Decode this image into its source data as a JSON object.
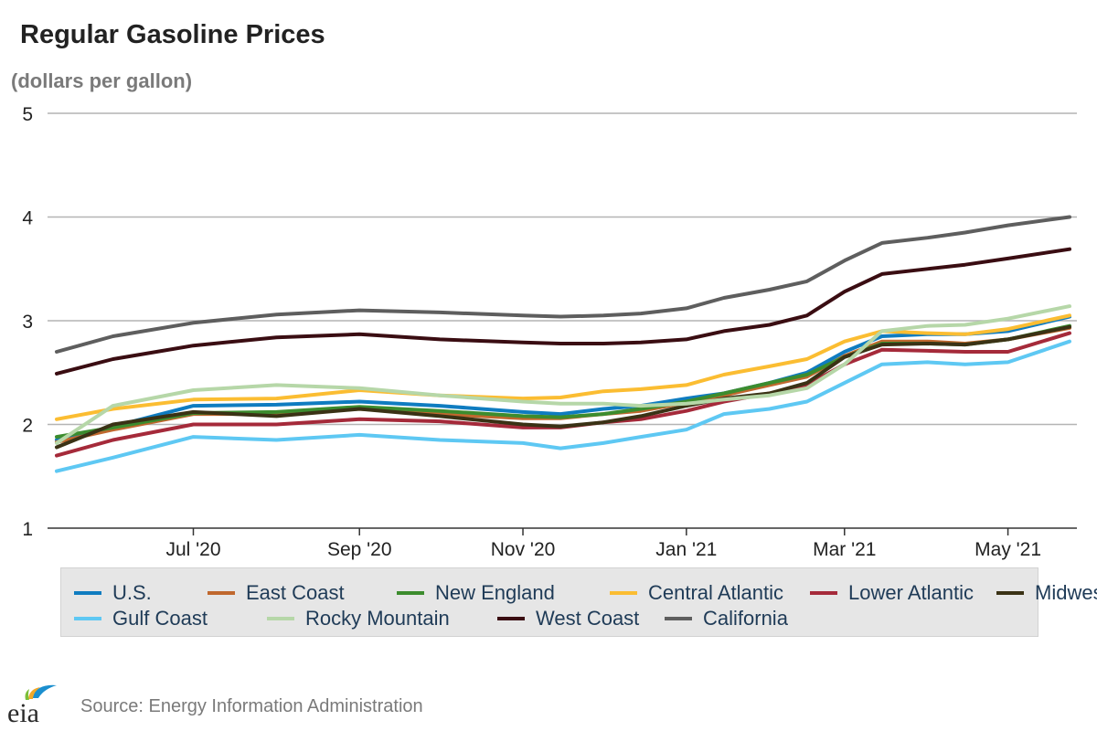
{
  "chart_data": {
    "type": "line",
    "title": "Regular Gasoline Prices",
    "subtitle": "(dollars per gallon)",
    "ylim": [
      1,
      5
    ],
    "y_ticks": [
      1,
      2,
      3,
      4,
      5
    ],
    "x_range": [
      "2020-05-11",
      "2021-05-24"
    ],
    "x_ticks": [
      {
        "date": "2020-07-01",
        "label": "Jul '20"
      },
      {
        "date": "2020-09-01",
        "label": "Sep '20"
      },
      {
        "date": "2020-11-01",
        "label": "Nov '20"
      },
      {
        "date": "2021-01-01",
        "label": "Jan '21"
      },
      {
        "date": "2021-03-01",
        "label": "Mar '21"
      },
      {
        "date": "2021-05-01",
        "label": "May '21"
      }
    ],
    "grid": "horizontal",
    "legend_position": "bottom",
    "series": [
      {
        "name": "U.S.",
        "color": "#0f7cc0",
        "points": [
          [
            "2020-05-11",
            1.85
          ],
          [
            "2020-06-01",
            1.98
          ],
          [
            "2020-07-01",
            2.18
          ],
          [
            "2020-08-01",
            2.19
          ],
          [
            "2020-09-01",
            2.22
          ],
          [
            "2020-10-01",
            2.18
          ],
          [
            "2020-11-01",
            2.12
          ],
          [
            "2020-11-15",
            2.1
          ],
          [
            "2020-12-01",
            2.15
          ],
          [
            "2020-12-15",
            2.18
          ],
          [
            "2021-01-01",
            2.25
          ],
          [
            "2021-01-15",
            2.3
          ],
          [
            "2021-02-01",
            2.4
          ],
          [
            "2021-02-15",
            2.5
          ],
          [
            "2021-03-01",
            2.7
          ],
          [
            "2021-03-15",
            2.85
          ],
          [
            "2021-04-01",
            2.87
          ],
          [
            "2021-04-15",
            2.87
          ],
          [
            "2021-05-01",
            2.9
          ],
          [
            "2021-05-24",
            3.04
          ]
        ]
      },
      {
        "name": "East Coast",
        "color": "#c0682e",
        "points": [
          [
            "2020-05-11",
            1.83
          ],
          [
            "2020-06-01",
            1.95
          ],
          [
            "2020-07-01",
            2.1
          ],
          [
            "2020-08-01",
            2.1
          ],
          [
            "2020-09-01",
            2.15
          ],
          [
            "2020-10-01",
            2.1
          ],
          [
            "2020-11-01",
            2.06
          ],
          [
            "2020-11-15",
            2.06
          ],
          [
            "2020-12-01",
            2.1
          ],
          [
            "2020-12-15",
            2.13
          ],
          [
            "2021-01-01",
            2.21
          ],
          [
            "2021-01-15",
            2.28
          ],
          [
            "2021-02-01",
            2.38
          ],
          [
            "2021-02-15",
            2.46
          ],
          [
            "2021-03-01",
            2.66
          ],
          [
            "2021-03-15",
            2.8
          ],
          [
            "2021-04-01",
            2.8
          ],
          [
            "2021-04-15",
            2.78
          ],
          [
            "2021-05-01",
            2.82
          ],
          [
            "2021-05-24",
            2.93
          ]
        ]
      },
      {
        "name": "New England",
        "color": "#3c8c2e",
        "points": [
          [
            "2020-05-11",
            1.88
          ],
          [
            "2020-06-01",
            1.97
          ],
          [
            "2020-07-01",
            2.11
          ],
          [
            "2020-08-01",
            2.12
          ],
          [
            "2020-09-01",
            2.17
          ],
          [
            "2020-10-01",
            2.13
          ],
          [
            "2020-11-01",
            2.08
          ],
          [
            "2020-11-15",
            2.07
          ],
          [
            "2020-12-01",
            2.1
          ],
          [
            "2020-12-15",
            2.15
          ],
          [
            "2021-01-01",
            2.22
          ],
          [
            "2021-01-15",
            2.3
          ],
          [
            "2021-02-01",
            2.4
          ],
          [
            "2021-02-15",
            2.48
          ],
          [
            "2021-03-01",
            2.65
          ],
          [
            "2021-03-15",
            2.78
          ],
          [
            "2021-04-01",
            2.78
          ],
          [
            "2021-04-15",
            2.77
          ],
          [
            "2021-05-01",
            2.82
          ],
          [
            "2021-05-24",
            2.95
          ]
        ]
      },
      {
        "name": "Central Atlantic",
        "color": "#fbbd32",
        "points": [
          [
            "2020-05-11",
            2.05
          ],
          [
            "2020-06-01",
            2.15
          ],
          [
            "2020-07-01",
            2.24
          ],
          [
            "2020-08-01",
            2.25
          ],
          [
            "2020-09-01",
            2.33
          ],
          [
            "2020-10-01",
            2.28
          ],
          [
            "2020-11-01",
            2.25
          ],
          [
            "2020-11-15",
            2.26
          ],
          [
            "2020-12-01",
            2.32
          ],
          [
            "2020-12-15",
            2.34
          ],
          [
            "2021-01-01",
            2.38
          ],
          [
            "2021-01-15",
            2.48
          ],
          [
            "2021-02-01",
            2.56
          ],
          [
            "2021-02-15",
            2.63
          ],
          [
            "2021-03-01",
            2.8
          ],
          [
            "2021-03-15",
            2.9
          ],
          [
            "2021-04-01",
            2.88
          ],
          [
            "2021-04-15",
            2.87
          ],
          [
            "2021-05-01",
            2.92
          ],
          [
            "2021-05-24",
            3.05
          ]
        ]
      },
      {
        "name": "Lower Atlantic",
        "color": "#a52a3a",
        "points": [
          [
            "2020-05-11",
            1.7
          ],
          [
            "2020-06-01",
            1.85
          ],
          [
            "2020-07-01",
            2.0
          ],
          [
            "2020-08-01",
            2.0
          ],
          [
            "2020-09-01",
            2.05
          ],
          [
            "2020-10-01",
            2.03
          ],
          [
            "2020-11-01",
            1.97
          ],
          [
            "2020-11-15",
            1.97
          ],
          [
            "2020-12-01",
            2.02
          ],
          [
            "2020-12-15",
            2.05
          ],
          [
            "2021-01-01",
            2.13
          ],
          [
            "2021-01-15",
            2.22
          ],
          [
            "2021-02-01",
            2.3
          ],
          [
            "2021-02-15",
            2.38
          ],
          [
            "2021-03-01",
            2.58
          ],
          [
            "2021-03-15",
            2.72
          ],
          [
            "2021-04-01",
            2.71
          ],
          [
            "2021-04-15",
            2.7
          ],
          [
            "2021-05-01",
            2.7
          ],
          [
            "2021-05-24",
            2.88
          ]
        ]
      },
      {
        "name": "Midwest",
        "color": "#3a3215",
        "points": [
          [
            "2020-05-11",
            1.78
          ],
          [
            "2020-06-01",
            2.0
          ],
          [
            "2020-07-01",
            2.12
          ],
          [
            "2020-08-01",
            2.08
          ],
          [
            "2020-09-01",
            2.15
          ],
          [
            "2020-10-01",
            2.08
          ],
          [
            "2020-11-01",
            2.0
          ],
          [
            "2020-11-15",
            1.98
          ],
          [
            "2020-12-01",
            2.02
          ],
          [
            "2020-12-15",
            2.08
          ],
          [
            "2021-01-01",
            2.18
          ],
          [
            "2021-01-15",
            2.25
          ],
          [
            "2021-02-01",
            2.3
          ],
          [
            "2021-02-15",
            2.4
          ],
          [
            "2021-03-01",
            2.65
          ],
          [
            "2021-03-15",
            2.77
          ],
          [
            "2021-04-01",
            2.78
          ],
          [
            "2021-04-15",
            2.77
          ],
          [
            "2021-05-01",
            2.82
          ],
          [
            "2021-05-24",
            2.94
          ]
        ]
      },
      {
        "name": "Gulf Coast",
        "color": "#5ec8f3",
        "points": [
          [
            "2020-05-11",
            1.55
          ],
          [
            "2020-06-01",
            1.68
          ],
          [
            "2020-07-01",
            1.88
          ],
          [
            "2020-08-01",
            1.85
          ],
          [
            "2020-09-01",
            1.9
          ],
          [
            "2020-10-01",
            1.85
          ],
          [
            "2020-11-01",
            1.82
          ],
          [
            "2020-11-15",
            1.77
          ],
          [
            "2020-12-01",
            1.82
          ],
          [
            "2020-12-15",
            1.88
          ],
          [
            "2021-01-01",
            1.95
          ],
          [
            "2021-01-15",
            2.1
          ],
          [
            "2021-02-01",
            2.15
          ],
          [
            "2021-02-15",
            2.22
          ],
          [
            "2021-03-01",
            2.4
          ],
          [
            "2021-03-15",
            2.58
          ],
          [
            "2021-04-01",
            2.6
          ],
          [
            "2021-04-15",
            2.58
          ],
          [
            "2021-05-01",
            2.6
          ],
          [
            "2021-05-24",
            2.8
          ]
        ]
      },
      {
        "name": "Rocky Mountain",
        "color": "#b6d7a8",
        "points": [
          [
            "2020-05-11",
            1.82
          ],
          [
            "2020-06-01",
            2.18
          ],
          [
            "2020-07-01",
            2.33
          ],
          [
            "2020-08-01",
            2.38
          ],
          [
            "2020-09-01",
            2.35
          ],
          [
            "2020-10-01",
            2.28
          ],
          [
            "2020-11-01",
            2.22
          ],
          [
            "2020-11-15",
            2.2
          ],
          [
            "2020-12-01",
            2.2
          ],
          [
            "2020-12-15",
            2.18
          ],
          [
            "2021-01-01",
            2.2
          ],
          [
            "2021-01-15",
            2.24
          ],
          [
            "2021-02-01",
            2.28
          ],
          [
            "2021-02-15",
            2.35
          ],
          [
            "2021-03-01",
            2.58
          ],
          [
            "2021-03-15",
            2.9
          ],
          [
            "2021-04-01",
            2.95
          ],
          [
            "2021-04-15",
            2.96
          ],
          [
            "2021-05-01",
            3.02
          ],
          [
            "2021-05-24",
            3.14
          ]
        ]
      },
      {
        "name": "West Coast",
        "color": "#3a0d12",
        "points": [
          [
            "2020-05-11",
            2.49
          ],
          [
            "2020-06-01",
            2.63
          ],
          [
            "2020-07-01",
            2.76
          ],
          [
            "2020-08-01",
            2.84
          ],
          [
            "2020-09-01",
            2.87
          ],
          [
            "2020-10-01",
            2.82
          ],
          [
            "2020-11-01",
            2.79
          ],
          [
            "2020-11-15",
            2.78
          ],
          [
            "2020-12-01",
            2.78
          ],
          [
            "2020-12-15",
            2.79
          ],
          [
            "2021-01-01",
            2.82
          ],
          [
            "2021-01-15",
            2.9
          ],
          [
            "2021-02-01",
            2.96
          ],
          [
            "2021-02-15",
            3.05
          ],
          [
            "2021-03-01",
            3.28
          ],
          [
            "2021-03-15",
            3.45
          ],
          [
            "2021-04-01",
            3.5
          ],
          [
            "2021-04-15",
            3.54
          ],
          [
            "2021-05-01",
            3.6
          ],
          [
            "2021-05-24",
            3.69
          ]
        ]
      },
      {
        "name": "California",
        "color": "#5e5e5e",
        "points": [
          [
            "2020-05-11",
            2.7
          ],
          [
            "2020-06-01",
            2.85
          ],
          [
            "2020-07-01",
            2.98
          ],
          [
            "2020-08-01",
            3.06
          ],
          [
            "2020-09-01",
            3.1
          ],
          [
            "2020-10-01",
            3.08
          ],
          [
            "2020-11-01",
            3.05
          ],
          [
            "2020-11-15",
            3.04
          ],
          [
            "2020-12-01",
            3.05
          ],
          [
            "2020-12-15",
            3.07
          ],
          [
            "2021-01-01",
            3.12
          ],
          [
            "2021-01-15",
            3.22
          ],
          [
            "2021-02-01",
            3.3
          ],
          [
            "2021-02-15",
            3.38
          ],
          [
            "2021-03-01",
            3.58
          ],
          [
            "2021-03-15",
            3.75
          ],
          [
            "2021-04-01",
            3.8
          ],
          [
            "2021-04-15",
            3.85
          ],
          [
            "2021-05-01",
            3.92
          ],
          [
            "2021-05-24",
            4.0
          ]
        ]
      }
    ]
  },
  "footer": {
    "source": "Source: Energy Information Administration",
    "logo_text": "eia"
  }
}
